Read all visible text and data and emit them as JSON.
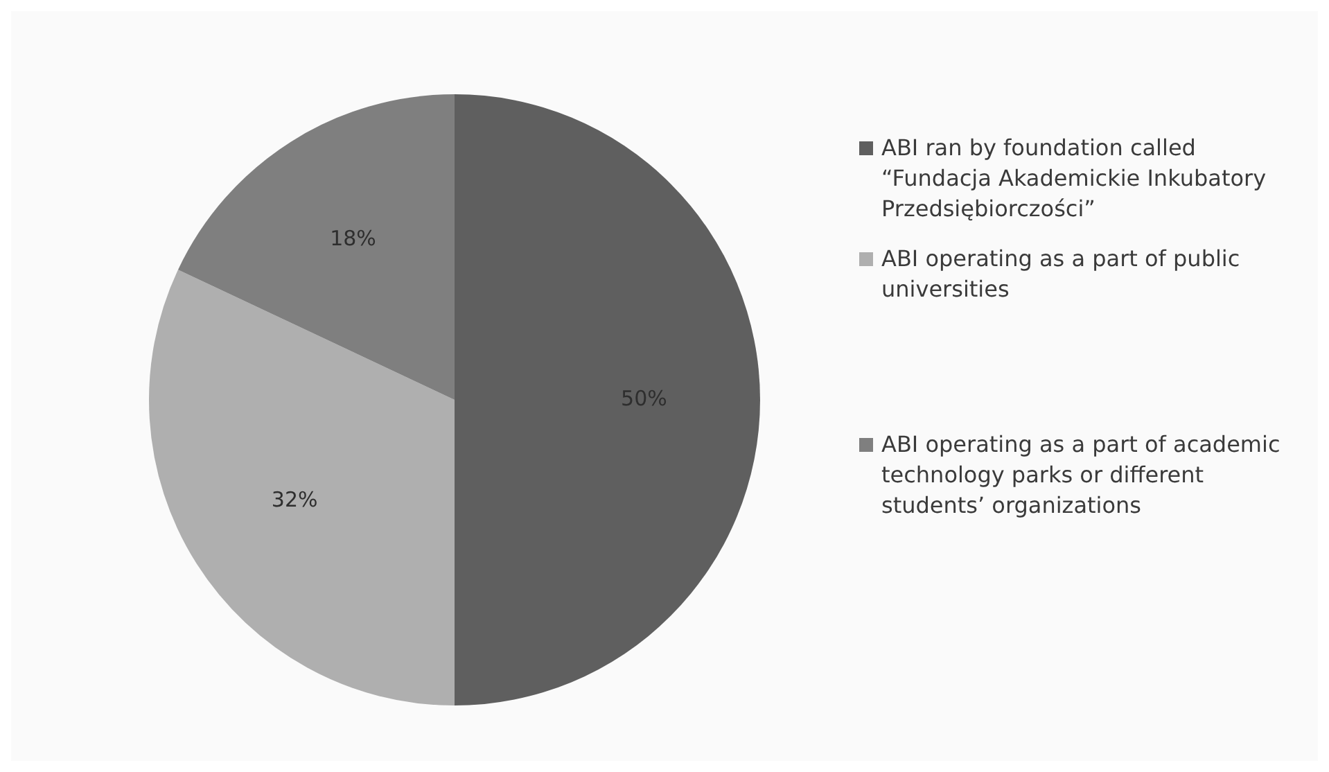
{
  "chart_data": {
    "type": "pie",
    "categories": [
      "ABI ran by foundation called “Fundacja Akademickie Inkubatory Przedsiębiorczości”",
      "ABI operating as a part of public universities",
      "ABI operating as a part of academic technology parks or different students’ organizations"
    ],
    "values": [
      50,
      32,
      18
    ],
    "colors": [
      "#5f5f5f",
      "#afafaf",
      "#7f7f7f"
    ],
    "value_labels": [
      "50%",
      "32%",
      "18%"
    ],
    "legend": "right"
  }
}
